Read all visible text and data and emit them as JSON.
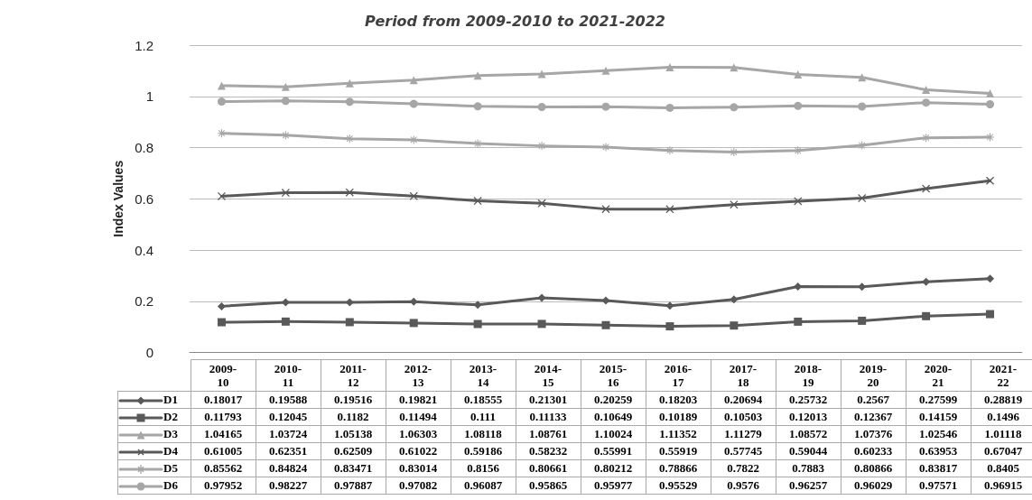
{
  "chart_data": {
    "type": "line",
    "title": "Period from 2009-2010 to 2021-2022",
    "ylabel": "Index Values",
    "categories": [
      "2009-10",
      "2010-11",
      "2011-12",
      "2012-13",
      "2013-14",
      "2014-15",
      "2015-16",
      "2016-17",
      "2017-18",
      "2018-19",
      "2019-20",
      "2020-21",
      "2021-22"
    ],
    "series": [
      {
        "name": "D1",
        "color": "#595959",
        "marker": "diamond",
        "values": [
          0.18017,
          0.19588,
          0.19516,
          0.19821,
          0.18555,
          0.21301,
          0.20259,
          0.18203,
          0.20694,
          0.25732,
          0.2567,
          0.27599,
          0.28819
        ]
      },
      {
        "name": "D2",
        "color": "#595959",
        "marker": "square",
        "values": [
          0.11793,
          0.12045,
          0.1182,
          0.11494,
          0.111,
          0.11133,
          0.10649,
          0.10189,
          0.10503,
          0.12013,
          0.12367,
          0.14159,
          0.1496
        ]
      },
      {
        "name": "D3",
        "color": "#a6a6a6",
        "marker": "triangle",
        "values": [
          1.04165,
          1.03724,
          1.05138,
          1.06303,
          1.08118,
          1.08761,
          1.10024,
          1.11352,
          1.11279,
          1.08572,
          1.07376,
          1.02546,
          1.01118
        ]
      },
      {
        "name": "D4",
        "color": "#595959",
        "marker": "cross",
        "values": [
          0.61005,
          0.62351,
          0.62509,
          0.61022,
          0.59186,
          0.58232,
          0.55991,
          0.55919,
          0.57745,
          0.59044,
          0.60233,
          0.63953,
          0.67047
        ]
      },
      {
        "name": "D5",
        "color": "#a6a6a6",
        "marker": "star",
        "values": [
          0.85562,
          0.84824,
          0.83471,
          0.83014,
          0.8156,
          0.80661,
          0.80212,
          0.78866,
          0.7822,
          0.7883,
          0.80866,
          0.83817,
          0.8405
        ]
      },
      {
        "name": "D6",
        "color": "#a6a6a6",
        "marker": "circle",
        "values": [
          0.97952,
          0.98227,
          0.97887,
          0.97082,
          0.96087,
          0.95865,
          0.95977,
          0.95529,
          0.9576,
          0.96257,
          0.96029,
          0.97571,
          0.96915
        ]
      }
    ],
    "ylim": [
      0,
      1.2
    ],
    "yticks": [
      0,
      0.2,
      0.4,
      0.6,
      0.8,
      1,
      1.2
    ],
    "grid": "y",
    "legend": "bottom",
    "line_style": "solid",
    "data_labels": true
  }
}
